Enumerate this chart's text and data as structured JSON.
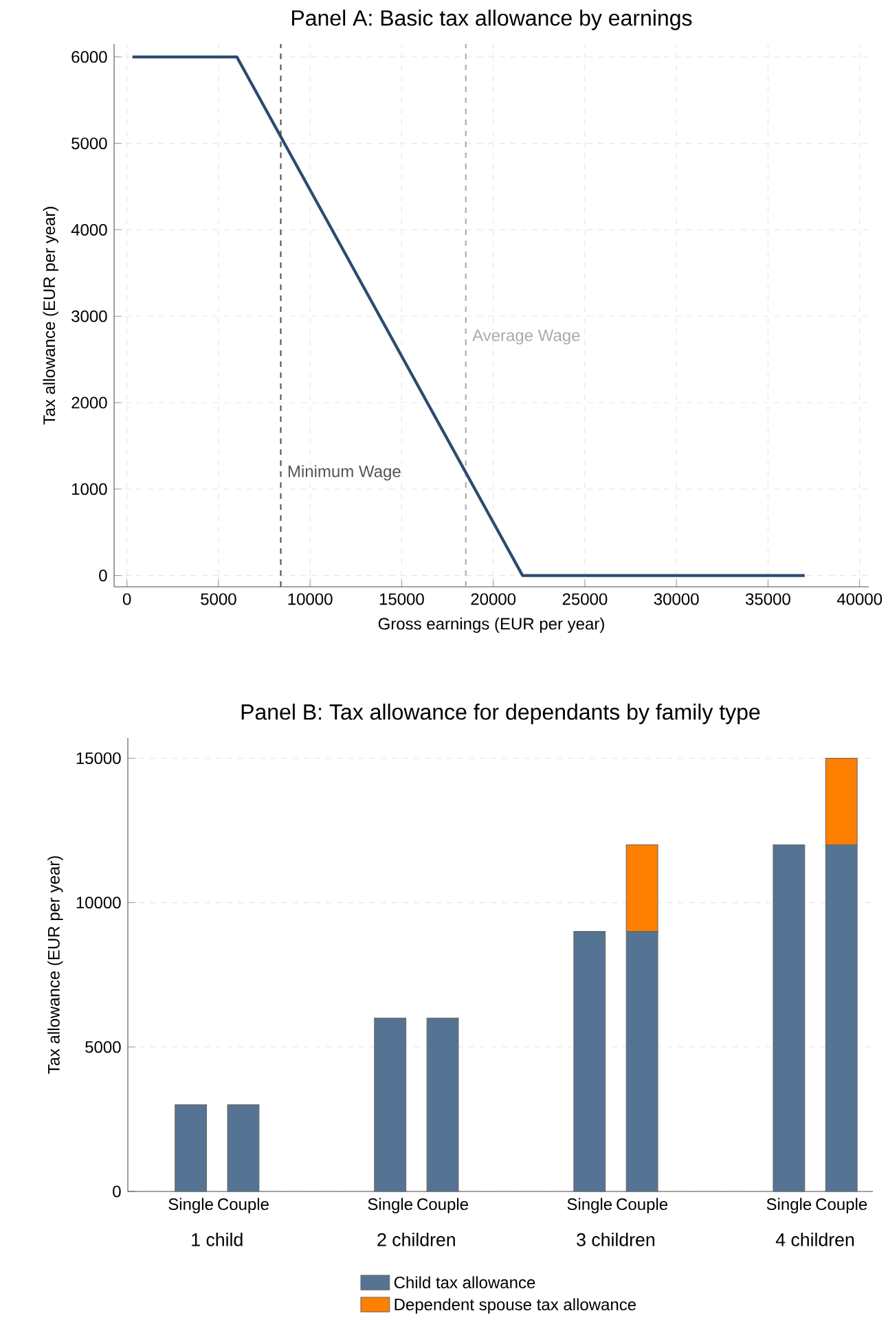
{
  "chart_data": [
    {
      "type": "line",
      "title": "Panel A: Basic tax allowance by earnings",
      "xlabel": "Gross earnings (EUR per year)",
      "ylabel": "Tax allowance (EUR per year)",
      "x": [
        300,
        6000,
        21600,
        37000
      ],
      "values": [
        6000,
        6000,
        0,
        0
      ],
      "color": "#2b4c6f",
      "xlim": [
        -700,
        40500
      ],
      "ylim": [
        -130,
        6150
      ],
      "xticks": [
        0,
        5000,
        10000,
        15000,
        20000,
        25000,
        30000,
        35000,
        40000
      ],
      "yticks": [
        0,
        1000,
        2000,
        3000,
        4000,
        5000,
        6000
      ],
      "grid": true,
      "marker": "none",
      "line_style": "solid",
      "ref_lines": [
        {
          "axis": "x",
          "value": 8400,
          "label": "Minimum Wage",
          "color": "#555555",
          "line_style": "dashed"
        },
        {
          "axis": "x",
          "value": 18500,
          "label": "Average Wage",
          "color": "#aaaaaa",
          "line_style": "dashed"
        }
      ]
    },
    {
      "type": "bar",
      "title": "Panel B: Tax allowance for dependants by family type",
      "ylabel": "Tax allowance (EUR per year)",
      "categories": [
        "Single",
        "Couple",
        "Single",
        "Couple",
        "Single",
        "Couple",
        "Single",
        "Couple"
      ],
      "annotations": [
        "1 child",
        "2 children",
        "3 children",
        "4 children"
      ],
      "series": [
        {
          "name": "Child tax allowance",
          "color": "#557494",
          "values": [
            3000,
            3000,
            6000,
            6000,
            9000,
            9000,
            12000,
            12000
          ]
        },
        {
          "name": "Dependent spouse tax allowance",
          "color": "#ff8000",
          "values": [
            null,
            null,
            null,
            null,
            null,
            3000,
            null,
            3000
          ]
        }
      ],
      "stacked": true,
      "ylim": [
        0,
        15700
      ],
      "yticks": [
        0,
        5000,
        10000,
        15000
      ],
      "grid": "y",
      "legend": "bottom"
    }
  ]
}
